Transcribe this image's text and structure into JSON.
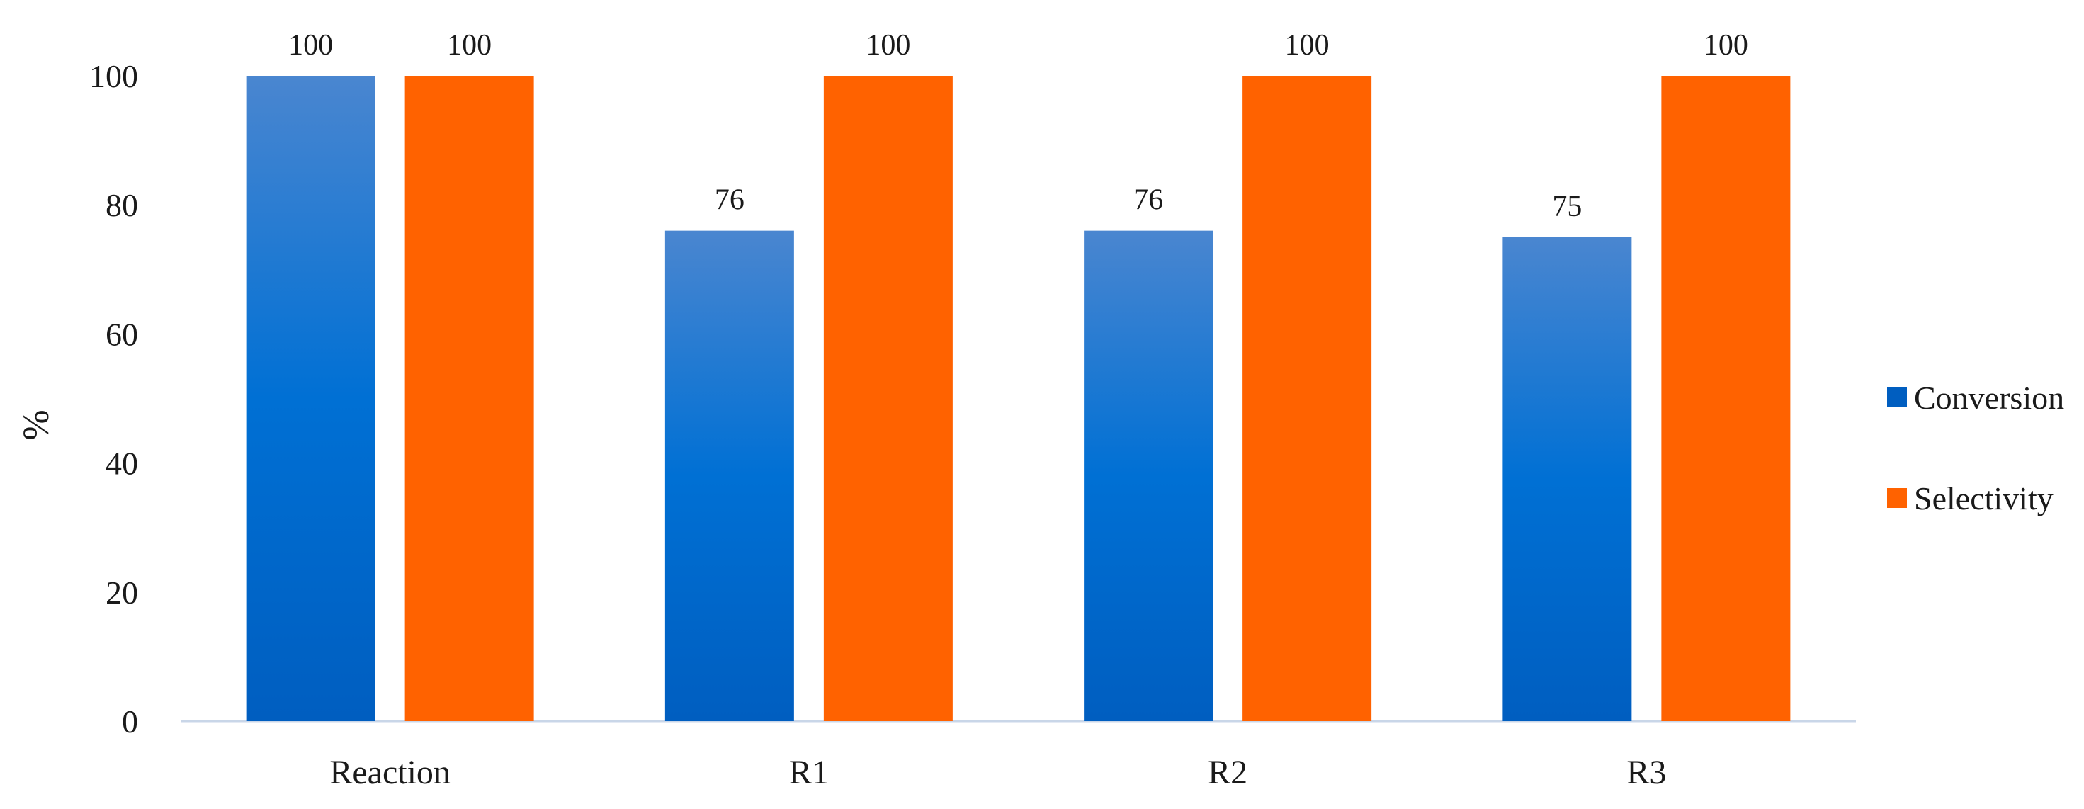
{
  "chart_data": {
    "type": "bar",
    "title": "",
    "xlabel": "",
    "ylabel": "%",
    "ylim": [
      0,
      100
    ],
    "yticks": [
      0,
      20,
      40,
      60,
      80,
      100
    ],
    "grid": false,
    "legend_position": "right",
    "categories": [
      "Reaction",
      "R1",
      "R2",
      "R3"
    ],
    "series": [
      {
        "name": "Conversion",
        "values": [
          100,
          76,
          76,
          75
        ],
        "data_labels": [
          "100",
          "76",
          "76",
          "75"
        ],
        "color_top": "#4a86d0",
        "color_bottom": "#005ec0"
      },
      {
        "name": "Selectivity",
        "values": [
          100,
          100,
          100,
          100
        ],
        "data_labels": [
          "100",
          "100",
          "100",
          "100"
        ],
        "color": "#ff6200"
      }
    ],
    "axis_color": "#c9d6e8"
  }
}
